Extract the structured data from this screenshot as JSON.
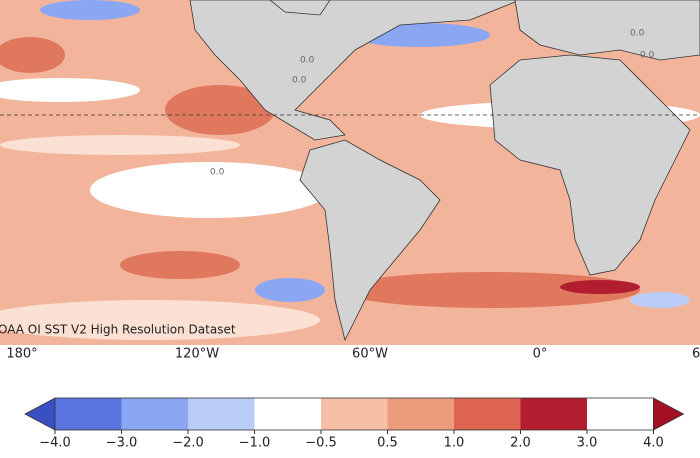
{
  "map": {
    "credit": "OAA OI SST V2 High Resolution Dataset",
    "contour_labels": [
      "0.0",
      "0.0",
      "0.0",
      "0.0",
      "0.0"
    ],
    "longitude_labels": [
      "180°",
      "120°W",
      "60°W",
      "0°",
      "6"
    ]
  },
  "colorbar": {
    "ticks": [
      {
        "value": -4,
        "label": "−4.0"
      },
      {
        "value": -3,
        "label": "−3.0"
      },
      {
        "value": -2,
        "label": "−2.0"
      },
      {
        "value": -1,
        "label": "−1.0"
      },
      {
        "value": -0.5,
        "label": "−0.5"
      },
      {
        "value": 0.5,
        "label": "0.5"
      },
      {
        "value": 1,
        "label": "1.0"
      },
      {
        "value": 2,
        "label": "2.0"
      },
      {
        "value": 3,
        "label": "3.0"
      },
      {
        "value": 4,
        "label": "4.0"
      }
    ],
    "colors": [
      "#5b76e0",
      "#8ba6f2",
      "#b9cdf8",
      "#ffffff",
      "#f5c0a6",
      "#ec9c7c",
      "#dc6450",
      "#b21e30"
    ],
    "extend_colors": [
      "#3a4fc4",
      "#a50f26"
    ]
  }
}
